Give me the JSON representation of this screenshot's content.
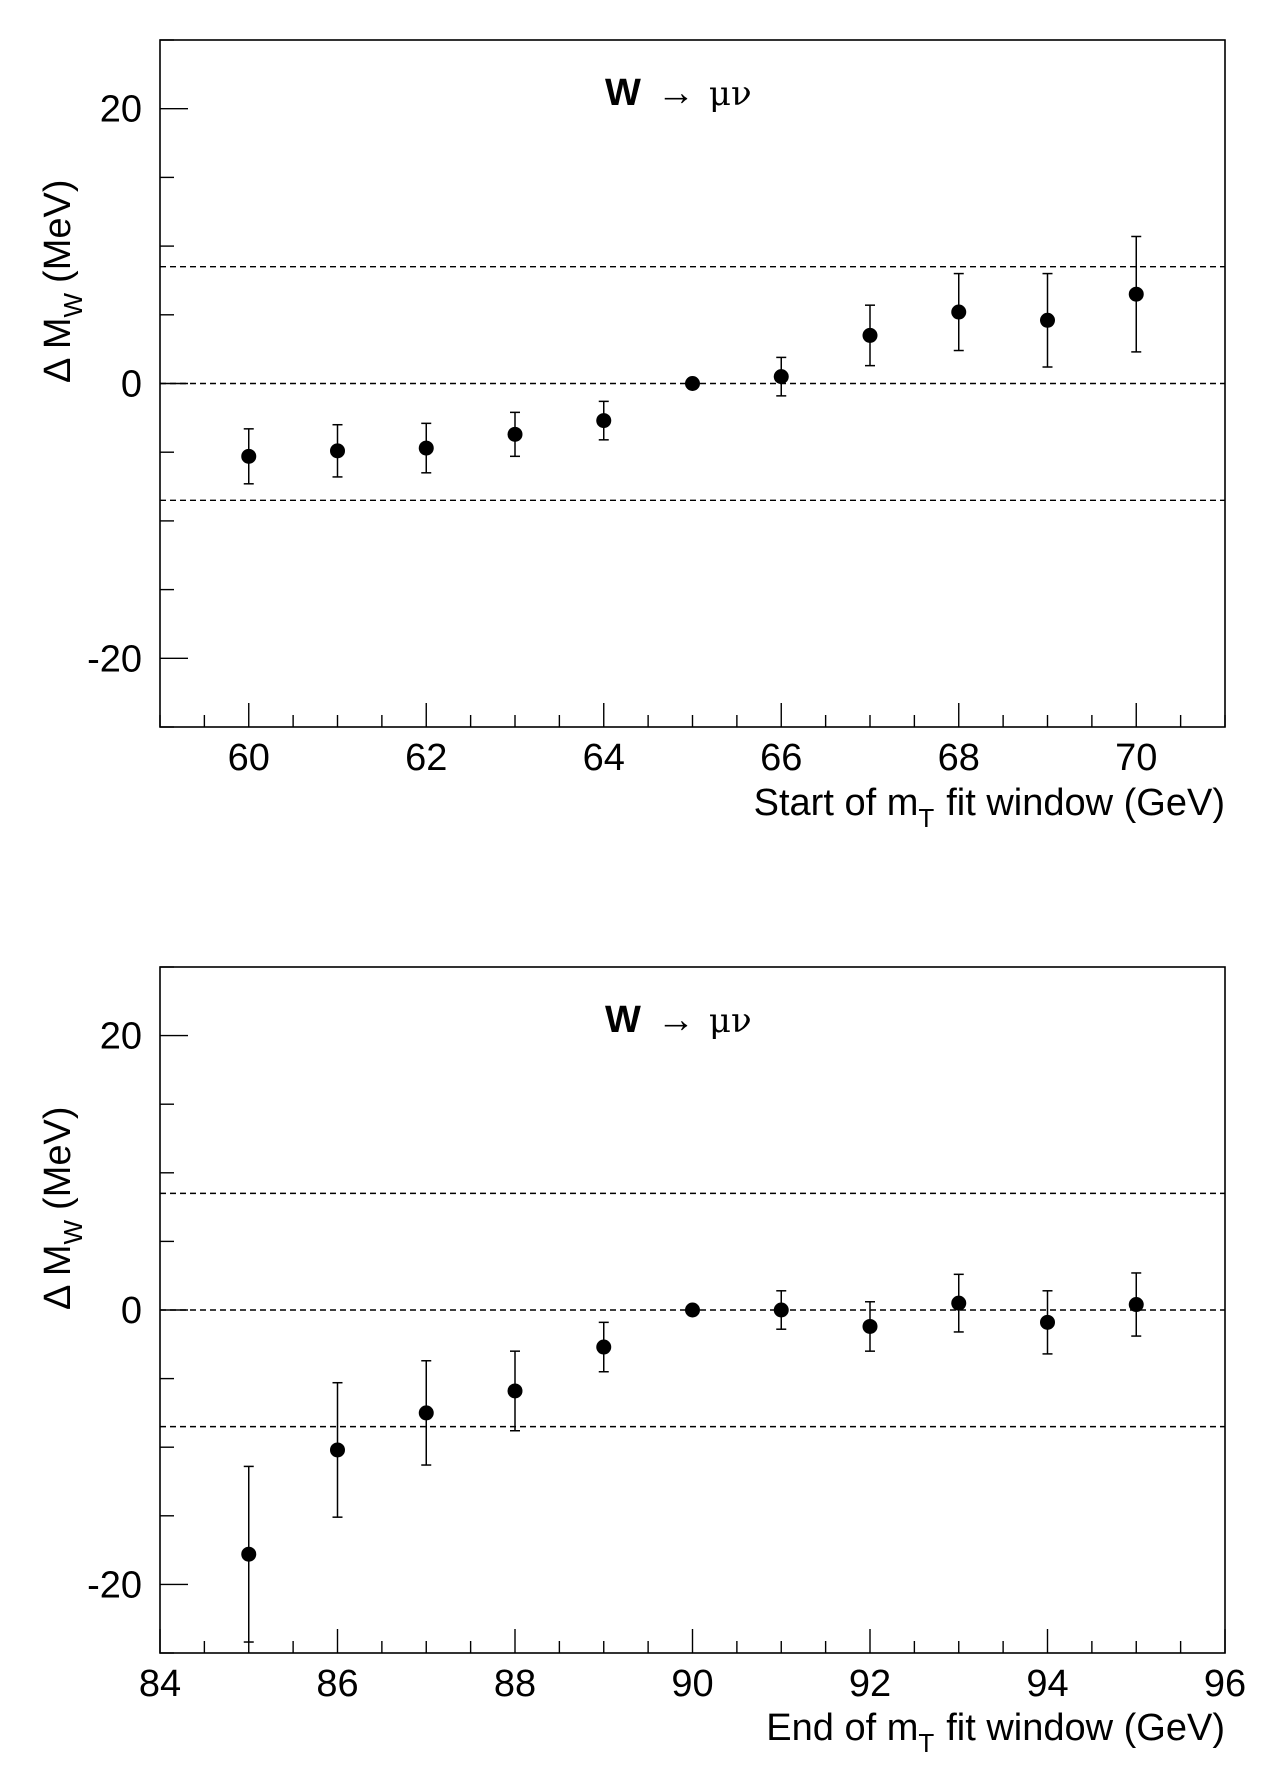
{
  "chart_data": [
    {
      "type": "scatter",
      "title": "",
      "annotation": {
        "bold": "W",
        "arrow": "→",
        "rest": "μν"
      },
      "ylabel": {
        "main": "Δ M",
        "sub": "W",
        "unit": "(MeV)"
      },
      "xlabel": {
        "pre": "Start of m",
        "sub": "T",
        "post": "fit window (GeV)"
      },
      "xlim": [
        59,
        71
      ],
      "ylim": [
        -25,
        25
      ],
      "xticks_major": [
        60,
        62,
        64,
        66,
        68,
        70
      ],
      "xticks_minor_step": 0.5,
      "yticks_major": [
        -20,
        0,
        20
      ],
      "yticks_minor_step": 5,
      "reference_lines": [
        8.5,
        0,
        -8.5
      ],
      "points": [
        {
          "x": 60,
          "y": -5.3,
          "err": 2.0
        },
        {
          "x": 61,
          "y": -4.9,
          "err": 1.9
        },
        {
          "x": 62,
          "y": -4.7,
          "err": 1.8
        },
        {
          "x": 63,
          "y": -3.7,
          "err": 1.6
        },
        {
          "x": 64,
          "y": -2.7,
          "err": 1.4
        },
        {
          "x": 65,
          "y": 0.0,
          "err": 0.0
        },
        {
          "x": 66,
          "y": 0.5,
          "err": 1.4
        },
        {
          "x": 67,
          "y": 3.5,
          "err": 2.2
        },
        {
          "x": 68,
          "y": 5.2,
          "err": 2.8
        },
        {
          "x": 69,
          "y": 4.6,
          "err": 3.4
        },
        {
          "x": 70,
          "y": 6.5,
          "err": 4.2
        }
      ]
    },
    {
      "type": "scatter",
      "title": "",
      "annotation": {
        "bold": "W",
        "arrow": "→",
        "rest": "μν"
      },
      "ylabel": {
        "main": "Δ M",
        "sub": "W",
        "unit": "(MeV)"
      },
      "xlabel": {
        "pre": "End of m",
        "sub": "T",
        "post": "fit window (GeV)"
      },
      "xlim": [
        84,
        96
      ],
      "ylim": [
        -25,
        25
      ],
      "xticks_major": [
        84,
        86,
        88,
        90,
        92,
        94,
        96
      ],
      "xticks_minor_step": 0.5,
      "yticks_major": [
        -20,
        0,
        20
      ],
      "yticks_minor_step": 5,
      "reference_lines": [
        8.5,
        0,
        -8.5
      ],
      "points": [
        {
          "x": 85,
          "y": -17.8,
          "err": 6.4
        },
        {
          "x": 86,
          "y": -10.2,
          "err": 4.9
        },
        {
          "x": 87,
          "y": -7.5,
          "err": 3.8
        },
        {
          "x": 88,
          "y": -5.9,
          "err": 2.9
        },
        {
          "x": 89,
          "y": -2.7,
          "err": 1.8
        },
        {
          "x": 90,
          "y": 0.0,
          "err": 0.0
        },
        {
          "x": 91,
          "y": 0.0,
          "err": 1.4
        },
        {
          "x": 92,
          "y": -1.2,
          "err": 1.8
        },
        {
          "x": 93,
          "y": 0.5,
          "err": 2.1
        },
        {
          "x": 94,
          "y": -0.9,
          "err": 2.3
        },
        {
          "x": 95,
          "y": 0.4,
          "err": 2.3
        }
      ]
    }
  ]
}
